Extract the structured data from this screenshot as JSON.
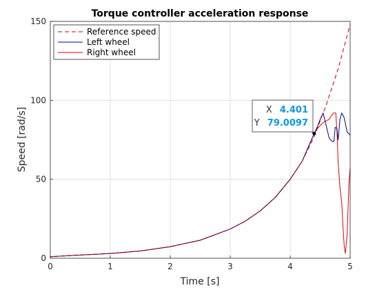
{
  "chart_data": {
    "type": "line",
    "title": "Torque controller acceleration response",
    "xlabel": "Time [s]",
    "ylabel": "Speed [rad/s]",
    "xlim": [
      0,
      5
    ],
    "ylim": [
      0,
      150
    ],
    "xticks": [
      "0",
      "1",
      "2",
      "3",
      "4",
      "5"
    ],
    "yticks": [
      "0",
      "50",
      "100",
      "150"
    ],
    "grid": true,
    "legend_position": "top-left",
    "series": [
      {
        "name": "Reference speed",
        "color": "#c00000",
        "style": "dashed",
        "x": [
          0,
          0.5,
          1,
          1.5,
          2,
          2.5,
          3,
          3.25,
          3.5,
          3.75,
          4,
          4.2,
          4.4,
          4.6,
          4.8,
          5
        ],
        "y": [
          1,
          2,
          3,
          4.6,
          7.3,
          11.4,
          18.5,
          23.5,
          30,
          38.5,
          50,
          61.5,
          77,
          97,
          120,
          148
        ]
      },
      {
        "name": "Left wheel",
        "color": "#00008b",
        "style": "solid",
        "x": [
          0,
          0.5,
          1,
          1.5,
          2,
          2.5,
          3,
          3.25,
          3.5,
          3.75,
          4,
          4.2,
          4.4,
          4.45,
          4.5,
          4.55,
          4.6,
          4.65,
          4.7,
          4.73,
          4.75,
          4.78,
          4.8,
          4.83,
          4.86,
          4.9,
          4.95,
          5
        ],
        "y": [
          1,
          2,
          3,
          4.6,
          7.3,
          11.4,
          18.5,
          23.5,
          30,
          38.5,
          50,
          61.5,
          79,
          83,
          88,
          92,
          84,
          76,
          74,
          74,
          83,
          82,
          75,
          88,
          92,
          89,
          80,
          78
        ]
      },
      {
        "name": "Right wheel",
        "color": "#dd0000",
        "style": "solid",
        "x": [
          0,
          0.5,
          1,
          1.5,
          2,
          2.5,
          3,
          3.25,
          3.5,
          3.75,
          4,
          4.2,
          4.4,
          4.45,
          4.5,
          4.55,
          4.6,
          4.65,
          4.7,
          4.73,
          4.76,
          4.78,
          4.8,
          4.83,
          4.86,
          4.88,
          4.9,
          4.92,
          4.95,
          4.98,
          5
        ],
        "y": [
          1,
          2,
          3,
          4.6,
          7.3,
          11.4,
          18.5,
          23.5,
          30,
          38.5,
          50,
          61.5,
          79,
          82,
          84,
          86,
          87,
          88,
          91,
          92,
          92,
          80,
          60,
          45,
          35,
          20,
          8,
          3,
          15,
          48,
          57
        ]
      }
    ],
    "datatip": {
      "x_label": "X",
      "x_value": "4.401",
      "y_label": "Y",
      "y_value": "79.0097",
      "x": 4.401,
      "y": 79.0097
    }
  }
}
